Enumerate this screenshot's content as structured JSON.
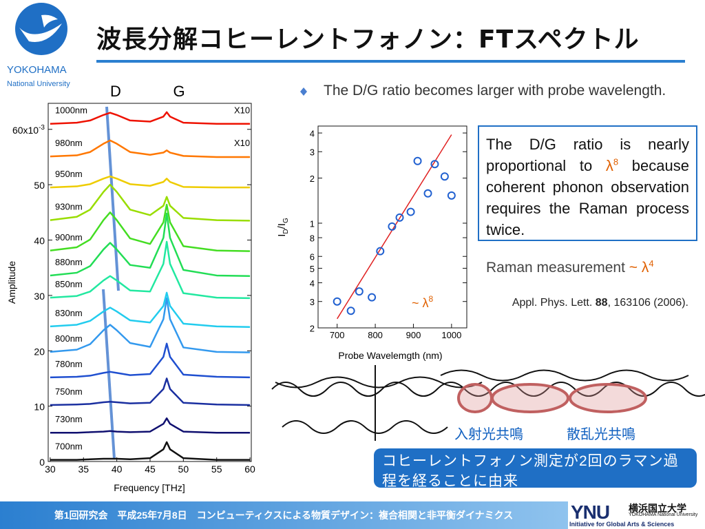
{
  "title": "波長分解コヒーレントフォノン：FTスペクトル",
  "logo": {
    "name": "YOKOHAMA",
    "sub": "National University"
  },
  "chart_data": [
    {
      "type": "line",
      "peak_labels": [
        "D",
        "G"
      ],
      "annotations": [
        "X10",
        "X10"
      ],
      "xlabel": "Frequency [THz]",
      "ylabel": "Amplitude",
      "x": [
        30,
        34,
        36,
        38,
        39,
        40,
        42,
        45,
        47,
        47.5,
        48,
        50,
        55,
        60
      ],
      "xlim": [
        29.7,
        60.2
      ],
      "ylim": [
        0,
        64.7
      ],
      "xticks": [
        30,
        35,
        40,
        45,
        50,
        55,
        60
      ],
      "yticks": [
        0,
        10,
        20,
        30,
        40,
        50,
        {
          "value": 60,
          "label": "60x10",
          "sup": "-3"
        }
      ],
      "series": [
        {
          "name": "700nm",
          "color": "#111111",
          "values": [
            0.3,
            0.3,
            0.4,
            0.5,
            0.5,
            0.5,
            0.4,
            0.6,
            2.2,
            3.5,
            2.2,
            0.6,
            0.3,
            0.3
          ]
        },
        {
          "name": "730nm",
          "color": "#101070",
          "values": [
            5.2,
            5.2,
            5.3,
            5.4,
            5.5,
            5.4,
            5.3,
            5.4,
            6.8,
            7.8,
            6.8,
            5.4,
            5.2,
            5.2
          ]
        },
        {
          "name": "750nm",
          "color": "#1a2fa0",
          "values": [
            10.2,
            10.3,
            10.4,
            10.7,
            10.8,
            10.7,
            10.5,
            10.6,
            13.1,
            15.0,
            13.1,
            10.6,
            10.3,
            10.2
          ]
        },
        {
          "name": "780nm",
          "color": "#1f4fd0",
          "values": [
            15.2,
            15.3,
            15.5,
            16.0,
            16.2,
            16.0,
            15.6,
            15.8,
            18.9,
            21.3,
            18.9,
            15.7,
            15.3,
            15.2
          ]
        },
        {
          "name": "800nm",
          "color": "#3399ee",
          "values": [
            19.8,
            20.2,
            21.2,
            23.7,
            24.7,
            23.7,
            21.4,
            20.7,
            25.7,
            29.5,
            25.7,
            20.6,
            19.8,
            19.7
          ]
        },
        {
          "name": "830nm",
          "color": "#22ccee",
          "values": [
            24.4,
            24.7,
            25.4,
            27.1,
            27.8,
            27.1,
            25.5,
            25.1,
            28.1,
            30.5,
            28.1,
            24.9,
            24.4,
            24.3
          ]
        },
        {
          "name": "850nm",
          "color": "#22e8a0",
          "values": [
            29.6,
            29.9,
            30.7,
            32.7,
            33.5,
            32.7,
            30.9,
            30.7,
            35.7,
            39.7,
            35.7,
            30.4,
            29.6,
            29.5
          ]
        },
        {
          "name": "880nm",
          "color": "#22dd55",
          "values": [
            33.6,
            34.1,
            35.3,
            38.3,
            39.5,
            38.3,
            35.5,
            35.0,
            40.4,
            44.8,
            40.4,
            34.6,
            33.6,
            33.5
          ]
        },
        {
          "name": "900nm",
          "color": "#44dd22",
          "values": [
            38.1,
            38.7,
            40.1,
            43.6,
            45.0,
            43.6,
            40.3,
            39.3,
            43.2,
            46.4,
            43.2,
            38.9,
            38.1,
            38.0
          ]
        },
        {
          "name": "930nm",
          "color": "#99dd00",
          "values": [
            43.6,
            44.2,
            45.5,
            48.7,
            50.0,
            48.7,
            45.5,
            44.5,
            46.2,
            47.8,
            46.2,
            44.0,
            43.6,
            43.5
          ]
        },
        {
          "name": "950nm",
          "color": "#eecc00",
          "values": [
            49.5,
            49.7,
            50.1,
            51.1,
            51.5,
            51.1,
            50.1,
            49.8,
            50.5,
            51.1,
            50.5,
            49.6,
            49.5,
            49.5
          ]
        },
        {
          "name": "980nm",
          "color": "#ff7700",
          "values": [
            55.1,
            55.3,
            55.9,
            57.4,
            58.0,
            57.4,
            55.9,
            55.4,
            55.8,
            56.2,
            55.8,
            55.2,
            55.0,
            55.0
          ]
        },
        {
          "name": "1000nm",
          "color": "#ee1100",
          "values": [
            61.0,
            61.2,
            61.6,
            62.6,
            63.0,
            62.6,
            61.6,
            61.4,
            62.3,
            63.1,
            62.3,
            61.2,
            61.0,
            61.0
          ]
        }
      ]
    },
    {
      "type": "scatter",
      "xlabel": "Probe Wavelemgth (nm)",
      "ylabel": [
        "I",
        "D",
        "/I",
        "G"
      ],
      "ylog": true,
      "annotation": {
        "text": "~ λ",
        "sup": "8"
      },
      "xlim": [
        650,
        1040
      ],
      "ylim": [
        0.2,
        4.45
      ],
      "xticks": [
        700,
        800,
        900,
        1000
      ],
      "yticks": [
        {
          "value": 0.2,
          "label": "2"
        },
        {
          "value": 0.3,
          "label": "3"
        },
        {
          "value": 0.4,
          "label": "4"
        },
        {
          "value": 0.5,
          "label": "5"
        },
        {
          "value": 0.6,
          "label": "6"
        },
        {
          "value": 0.8,
          "label": "8"
        },
        1,
        2,
        3,
        4
      ],
      "x": [
        700,
        736,
        758,
        791,
        813,
        844,
        864,
        893,
        911,
        938,
        956,
        982,
        1000
      ],
      "series": [
        {
          "color": "#2060d0",
          "values": [
            0.3,
            0.26,
            0.35,
            0.32,
            0.65,
            0.95,
            1.09,
            1.19,
            2.6,
            1.58,
            2.48,
            2.05,
            1.53
          ]
        }
      ],
      "fit": {
        "x": [
          700,
          1000
        ],
        "values": [
          0.23,
          3.9
        ],
        "color": "#e02020"
      }
    }
  ],
  "bullet": "The D/G ratio becomes larger with probe wavelength.",
  "box": {
    "before": "The D/G ratio is nearly proportional to",
    "lambda": "λ",
    "exp": "8",
    "after": "because coherent phonon observation requires the Raman process twice."
  },
  "raman": {
    "text": "Raman measurement",
    "approx": "~ λ",
    "exp": "4"
  },
  "citation": {
    "journal": "Appl. Phys. Lett.",
    "volume": "88",
    "rest": ", 163106 (2006)."
  },
  "resonance": [
    "入射光共鳴",
    "散乱光共鳴"
  ],
  "conclusion": "コヒーレントフォノン測定が2回のラマン過程を経ることに由来",
  "footer": "第1回研究会　平成25年7月8日　コンピューティクスによる物質デザイン：複合相関と非平衡ダイナミクス",
  "ynu": {
    "mark": "YNU",
    "name": "横浜国立大学",
    "en": "YOKOHAMA National University",
    "tag": "Initiative for Global Arts & Sciences"
  }
}
